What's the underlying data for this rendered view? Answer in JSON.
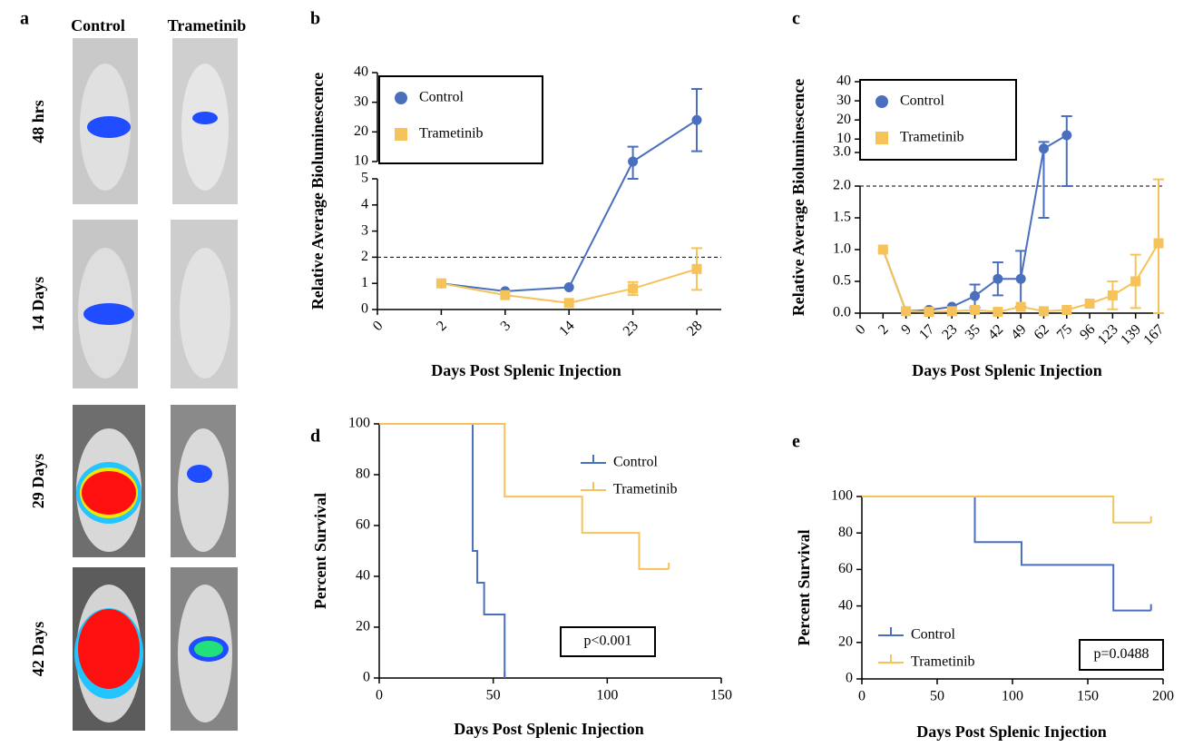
{
  "panel_a": {
    "panel": "a",
    "columns": [
      "Control",
      "Trametinib"
    ],
    "rows": [
      "48 hrs",
      "14 Days",
      "29 Days",
      "42 Days"
    ]
  },
  "chart_data": [
    {
      "type": "line",
      "panel": "b",
      "x_label": "Days Post Splenic Injection",
      "y_label": "Relative Average Bioluminescence",
      "categories": [
        "0",
        "2",
        "3",
        "14",
        "23",
        "28"
      ],
      "series": [
        {
          "name": "Control",
          "color": "#4a6fbf",
          "marker": "circle",
          "values": [
            null,
            1.0,
            0.7,
            0.85,
            10,
            24
          ],
          "errors": [
            null,
            null,
            null,
            null,
            5,
            10.5
          ]
        },
        {
          "name": "Trametinib",
          "color": "#f5c35a",
          "marker": "square",
          "values": [
            null,
            1.0,
            0.55,
            0.25,
            0.8,
            1.55
          ],
          "errors": [
            null,
            null,
            null,
            null,
            0.25,
            0.8
          ]
        }
      ],
      "ylim": [
        0,
        40
      ],
      "ybreak": [
        5,
        10
      ],
      "yticks": [
        0,
        1,
        2,
        3,
        4,
        5,
        10,
        20,
        30,
        40
      ],
      "hline": 2,
      "legend": "upper left"
    },
    {
      "type": "line",
      "panel": "c",
      "x_label": "Days Post Splenic Injection",
      "y_label": "Relative Average Bioluminescence",
      "categories": [
        "0",
        "2",
        "9",
        "17",
        "23",
        "35",
        "42",
        "49",
        "62",
        "75",
        "96",
        "123",
        "139",
        "167"
      ],
      "series": [
        {
          "name": "Control",
          "color": "#4a6fbf",
          "marker": "circle",
          "values": [
            null,
            1.0,
            0.03,
            0.05,
            0.1,
            0.27,
            0.54,
            0.54,
            5,
            12,
            null,
            null,
            null,
            null
          ],
          "errors": [
            null,
            null,
            null,
            null,
            null,
            0.18,
            0.26,
            0.44,
            3.5,
            10,
            null,
            null,
            null,
            null
          ]
        },
        {
          "name": "Trametinib",
          "color": "#f5c35a",
          "marker": "square",
          "values": [
            null,
            1.0,
            0.03,
            0.02,
            0.03,
            0.05,
            0.02,
            0.1,
            0.03,
            0.05,
            0.15,
            0.28,
            0.5,
            1.1
          ],
          "errors": [
            null,
            null,
            null,
            null,
            null,
            null,
            null,
            null,
            null,
            null,
            null,
            0.22,
            0.42,
            1.1
          ]
        }
      ],
      "ylim": [
        0,
        40
      ],
      "ybreak": [
        2,
        3
      ],
      "yticks": [
        {
          "value": 0,
          "label": "0.0"
        },
        {
          "value": 0.5,
          "label": "0.5"
        },
        {
          "value": 1,
          "label": "1.0"
        },
        {
          "value": 1.5,
          "label": "1.5"
        },
        {
          "value": 2,
          "label": "2.0"
        },
        {
          "value": 3,
          "label": "3.0"
        },
        10,
        20,
        30,
        40
      ],
      "hline": 2,
      "legend": "upper left"
    },
    {
      "type": "survival",
      "panel": "d",
      "x_label": "Days Post Splenic Injection",
      "y_label": "Percent Survival",
      "series": [
        {
          "name": "Control",
          "color": "#4a6fbf",
          "x": [
            0,
            41,
            43,
            46,
            55
          ],
          "values": [
            100,
            50,
            37.5,
            25,
            0
          ]
        },
        {
          "name": "Trametinib",
          "color": "#f5c35a",
          "x": [
            0,
            55,
            89,
            114,
            127
          ],
          "values": [
            100,
            71.4,
            57.1,
            42.9,
            42.9
          ]
        }
      ],
      "xlim": [
        0,
        150
      ],
      "xticks": [
        0,
        50,
        100,
        150
      ],
      "ylim": [
        0,
        100
      ],
      "yticks": [
        0,
        20,
        40,
        60,
        80,
        100
      ],
      "annotation": "p<0.001",
      "legend": "upper right"
    },
    {
      "type": "survival",
      "panel": "e",
      "x_label": "Days Post Splenic Injection",
      "y_label": "Percent Survival",
      "series": [
        {
          "name": "Control",
          "color": "#4a6fbf",
          "x": [
            0,
            75,
            106,
            167,
            192
          ],
          "values": [
            100,
            75,
            62.5,
            37.5,
            37.5
          ]
        },
        {
          "name": "Trametinib",
          "color": "#f5c35a",
          "x": [
            0,
            167,
            192
          ],
          "values": [
            100,
            85.7,
            85.7
          ]
        }
      ],
      "xlim": [
        0,
        200
      ],
      "xticks": [
        0,
        50,
        100,
        150,
        200
      ],
      "ylim": [
        0,
        100
      ],
      "yticks": [
        0,
        20,
        40,
        60,
        80,
        100
      ],
      "annotation": "p=0.0488",
      "legend": "lower left"
    }
  ]
}
